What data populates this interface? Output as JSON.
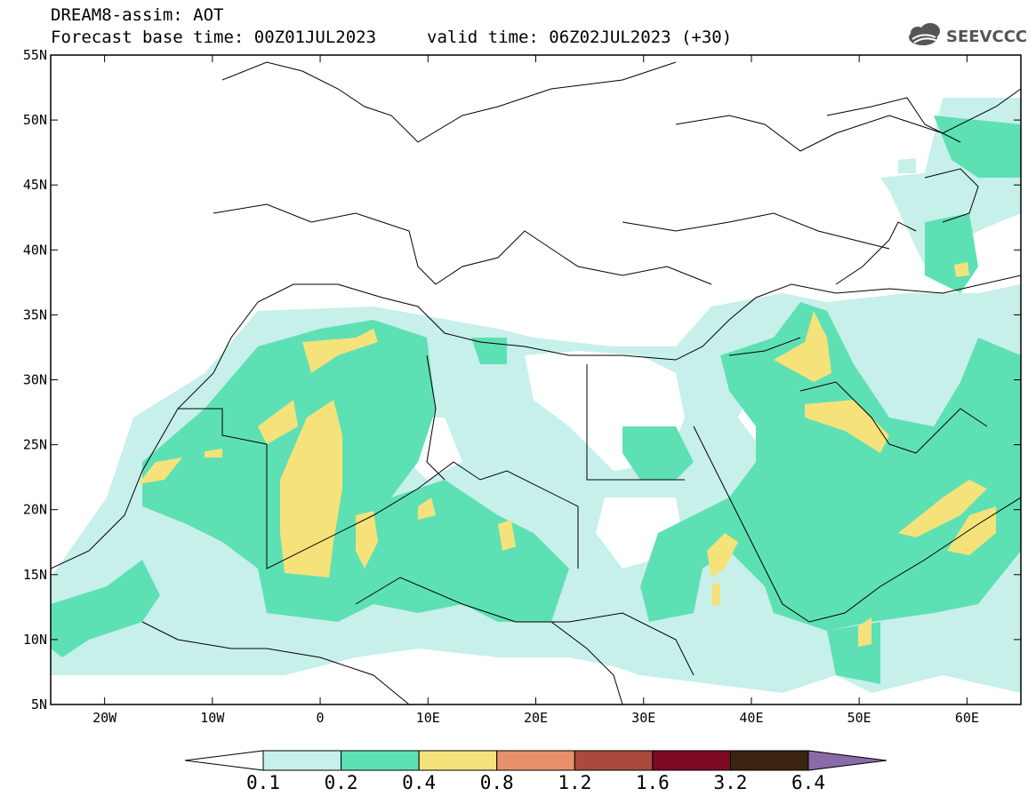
{
  "header": {
    "model_title": "DREAM8-assim: AOT",
    "base_time": "Forecast base time: 00Z01JUL2023",
    "valid_time": "valid time: 06Z02JUL2023 (+30)"
  },
  "logo": {
    "text": "SEEVCCC",
    "icon": "cloud-icon"
  },
  "map": {
    "lon_range": [
      -25,
      65
    ],
    "lat_range": [
      5,
      55
    ],
    "lon_ticks": [
      {
        "value": -20,
        "label": "20W"
      },
      {
        "value": -10,
        "label": "10W"
      },
      {
        "value": 0,
        "label": "0"
      },
      {
        "value": 10,
        "label": "10E"
      },
      {
        "value": 20,
        "label": "20E"
      },
      {
        "value": 30,
        "label": "30E"
      },
      {
        "value": 40,
        "label": "40E"
      },
      {
        "value": 50,
        "label": "50E"
      },
      {
        "value": 60,
        "label": "60E"
      }
    ],
    "lat_ticks": [
      {
        "value": 55,
        "label": "55N"
      },
      {
        "value": 50,
        "label": "50N"
      },
      {
        "value": 45,
        "label": "45N"
      },
      {
        "value": 40,
        "label": "40N"
      },
      {
        "value": 35,
        "label": "35N"
      },
      {
        "value": 30,
        "label": "30N"
      },
      {
        "value": 25,
        "label": "25N"
      },
      {
        "value": 20,
        "label": "20N"
      },
      {
        "value": 15,
        "label": "15N"
      },
      {
        "value": 10,
        "label": "10N"
      },
      {
        "value": 5,
        "label": "5N"
      }
    ]
  },
  "colorbar": {
    "levels": [
      "0.1",
      "0.2",
      "0.4",
      "0.8",
      "1.2",
      "1.6",
      "3.2",
      "6.4"
    ],
    "colors": [
      "#ffffff",
      "#c7f0ea",
      "#5ee0b5",
      "#f5e27a",
      "#e8906a",
      "#a94a3c",
      "#7c0a24",
      "#3b2412",
      "#8b6aa8"
    ]
  }
}
